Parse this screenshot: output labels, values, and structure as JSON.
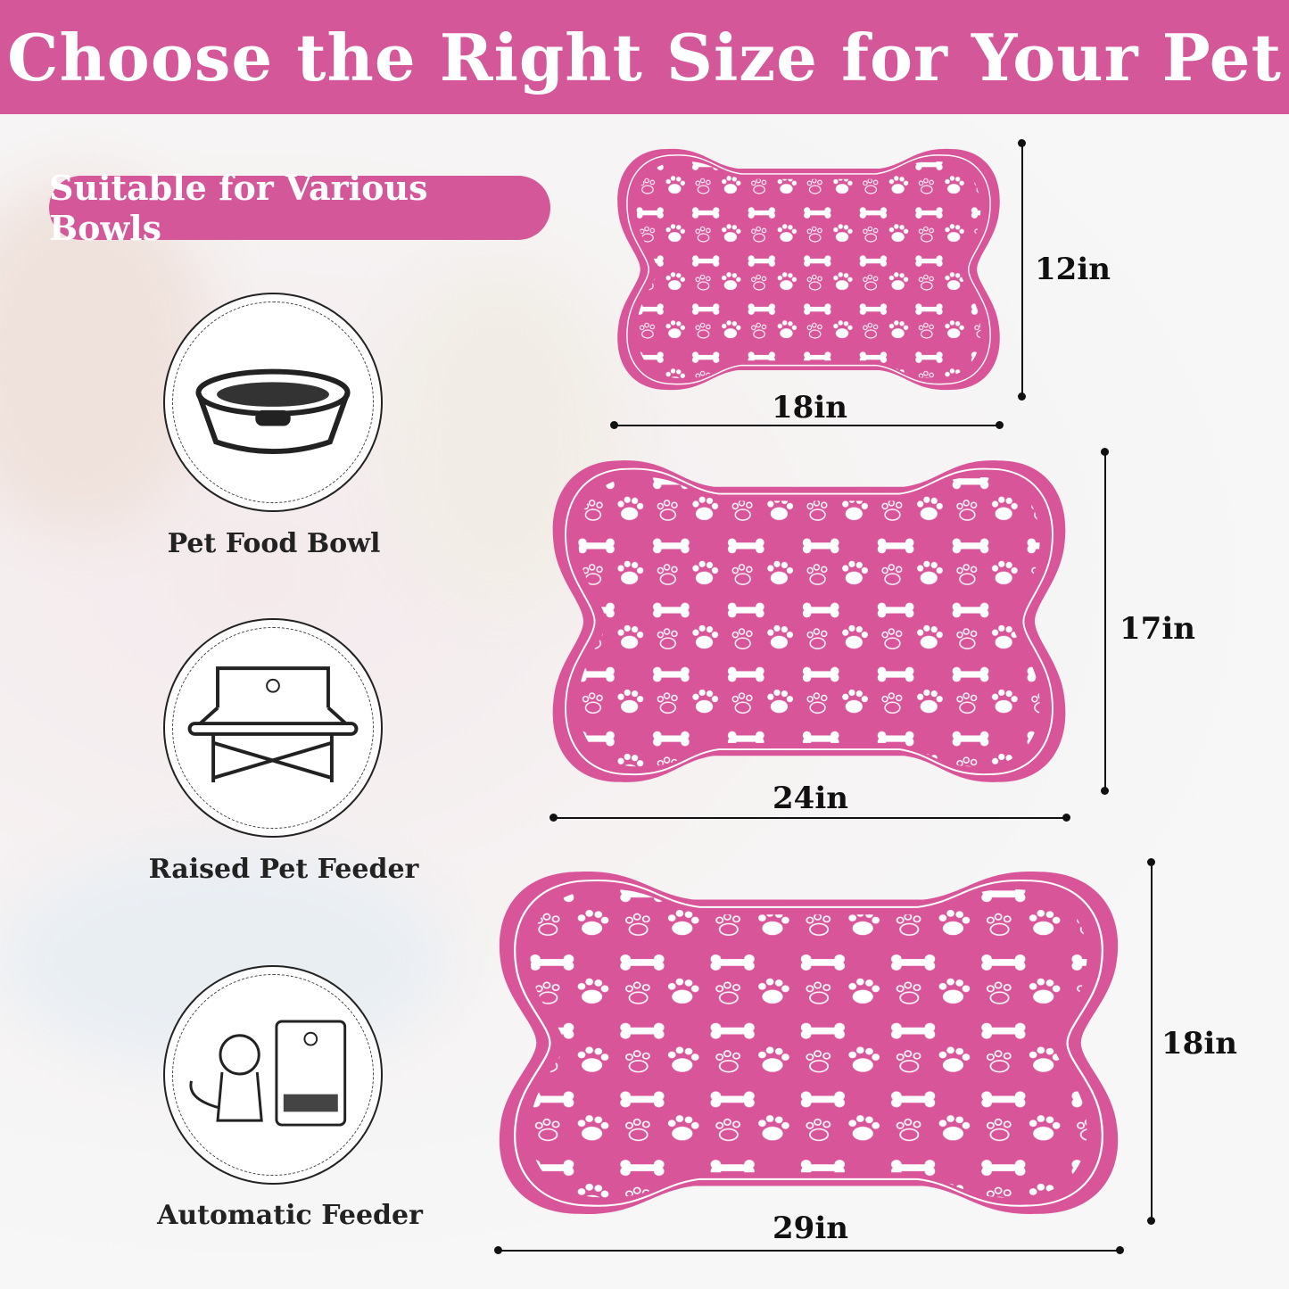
{
  "header": {
    "title": "Choose the Right Size for Your Pet"
  },
  "badge": {
    "label": "Suitable for Various Bowls"
  },
  "bowls": [
    {
      "label": "Pet Food Bowl",
      "icon": "pet-food-bowl-icon"
    },
    {
      "label": "Raised Pet Feeder",
      "icon": "raised-feeder-icon"
    },
    {
      "label": "Automatic Feeder",
      "icon": "automatic-feeder-icon"
    }
  ],
  "sizes": [
    {
      "width": "18in",
      "height": "12in"
    },
    {
      "width": "24in",
      "height": "17in"
    },
    {
      "width": "29in",
      "height": "18in"
    }
  ],
  "colors": {
    "accent": "#d4579a",
    "mat": "#d9559a"
  }
}
